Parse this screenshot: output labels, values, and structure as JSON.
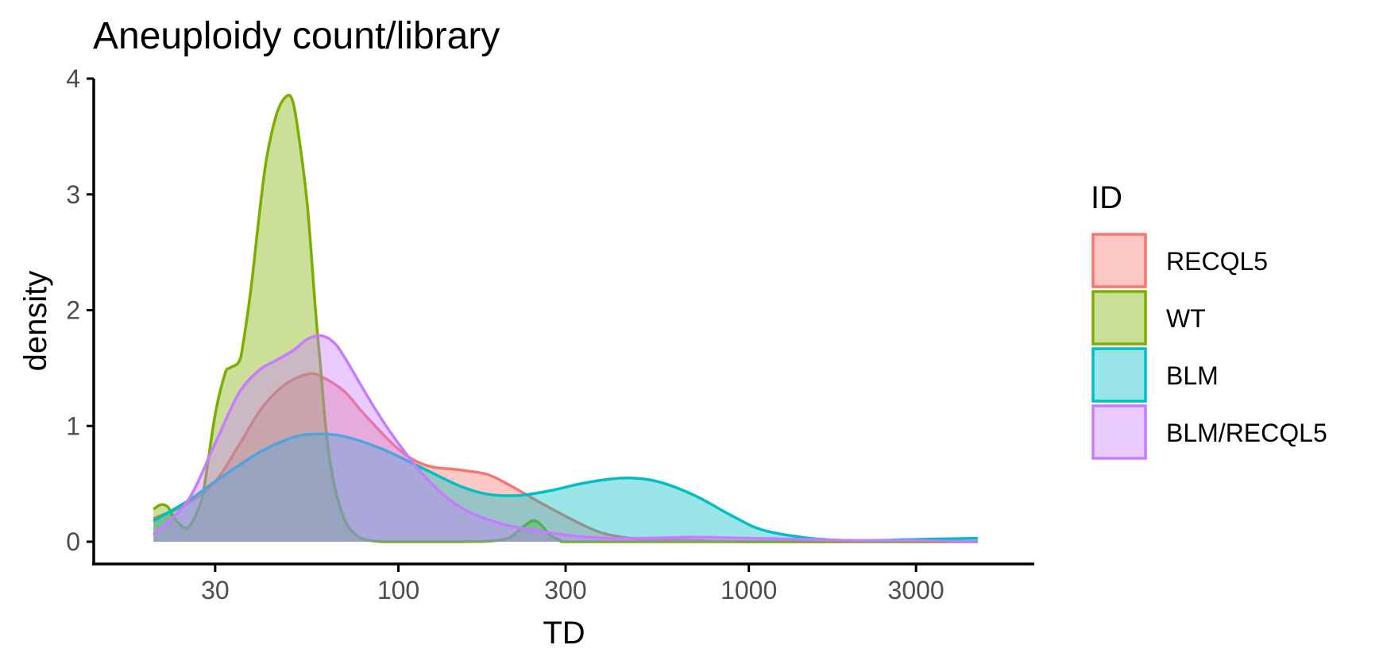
{
  "chart_data": {
    "type": "area",
    "subtype": "density",
    "title": "Aneuploidy count/library",
    "xlabel": "TD",
    "ylabel": "density",
    "x_scale": "log10",
    "xlim": [
      18,
      5000
    ],
    "ylim": [
      0,
      4
    ],
    "x_ticks": [
      30,
      100,
      300,
      1000,
      3000
    ],
    "x_tick_labels": [
      "30",
      "100",
      "300",
      "1000",
      "3000"
    ],
    "y_ticks": [
      0,
      1,
      2,
      3,
      4
    ],
    "y_tick_labels": [
      "0",
      "1",
      "2",
      "3",
      "4"
    ],
    "grid": false,
    "legend": {
      "title": "ID",
      "position": "right"
    },
    "fill_opacity": 0.4,
    "series": [
      {
        "name": "RECQL5",
        "color": "#F8766D",
        "x": [
          20,
          25,
          30,
          35,
          40,
          45,
          50,
          56,
          60,
          70,
          80,
          100,
          120,
          150,
          180,
          210,
          250,
          300,
          350,
          400,
          500,
          700,
          1000,
          2000,
          4500
        ],
        "y": [
          0.2,
          0.33,
          0.52,
          0.83,
          1.12,
          1.3,
          1.4,
          1.45,
          1.43,
          1.3,
          1.1,
          0.8,
          0.66,
          0.62,
          0.58,
          0.48,
          0.35,
          0.22,
          0.12,
          0.06,
          0.02,
          0.01,
          0.0,
          0.0,
          0.0
        ]
      },
      {
        "name": "WT",
        "color": "#7CAE00",
        "x": [
          20,
          21,
          22,
          23,
          25,
          27,
          28,
          30,
          32,
          33,
          35,
          36,
          38,
          40,
          42,
          45,
          48,
          50,
          52,
          55,
          58,
          60,
          62,
          65,
          70,
          75,
          80,
          90,
          100,
          150,
          200,
          225,
          240,
          250,
          260,
          270,
          290,
          300,
          400,
          1000,
          4500
        ],
        "y": [
          0.28,
          0.32,
          0.3,
          0.2,
          0.12,
          0.3,
          0.5,
          1.1,
          1.45,
          1.5,
          1.55,
          1.7,
          2.2,
          2.8,
          3.3,
          3.7,
          3.85,
          3.8,
          3.5,
          2.9,
          2.0,
          1.5,
          1.0,
          0.55,
          0.2,
          0.07,
          0.02,
          0.0,
          0.0,
          0.0,
          0.02,
          0.12,
          0.18,
          0.17,
          0.12,
          0.06,
          0.01,
          0.0,
          0.0,
          0.0,
          0.0
        ]
      },
      {
        "name": "BLM",
        "color": "#00BFC4",
        "x": [
          20,
          25,
          30,
          40,
          50,
          58,
          70,
          90,
          120,
          150,
          180,
          220,
          270,
          330,
          400,
          460,
          550,
          700,
          900,
          1100,
          1500,
          2000,
          3000,
          4500
        ],
        "y": [
          0.18,
          0.35,
          0.52,
          0.77,
          0.9,
          0.93,
          0.91,
          0.8,
          0.62,
          0.48,
          0.41,
          0.4,
          0.44,
          0.5,
          0.54,
          0.55,
          0.52,
          0.4,
          0.22,
          0.1,
          0.03,
          0.01,
          0.02,
          0.03
        ]
      },
      {
        "name": "BLM/RECQL5",
        "color": "#C77CFF",
        "x": [
          20,
          25,
          30,
          35,
          40,
          45,
          50,
          55,
          60,
          65,
          70,
          80,
          90,
          100,
          120,
          150,
          200,
          300,
          400,
          500,
          700,
          1000,
          1500,
          2000,
          3000,
          4500
        ],
        "y": [
          0.06,
          0.35,
          0.85,
          1.28,
          1.48,
          1.57,
          1.65,
          1.75,
          1.78,
          1.73,
          1.6,
          1.3,
          1.05,
          0.85,
          0.55,
          0.3,
          0.15,
          0.06,
          0.03,
          0.03,
          0.04,
          0.03,
          0.02,
          0.01,
          0.01,
          0.0
        ]
      }
    ]
  }
}
